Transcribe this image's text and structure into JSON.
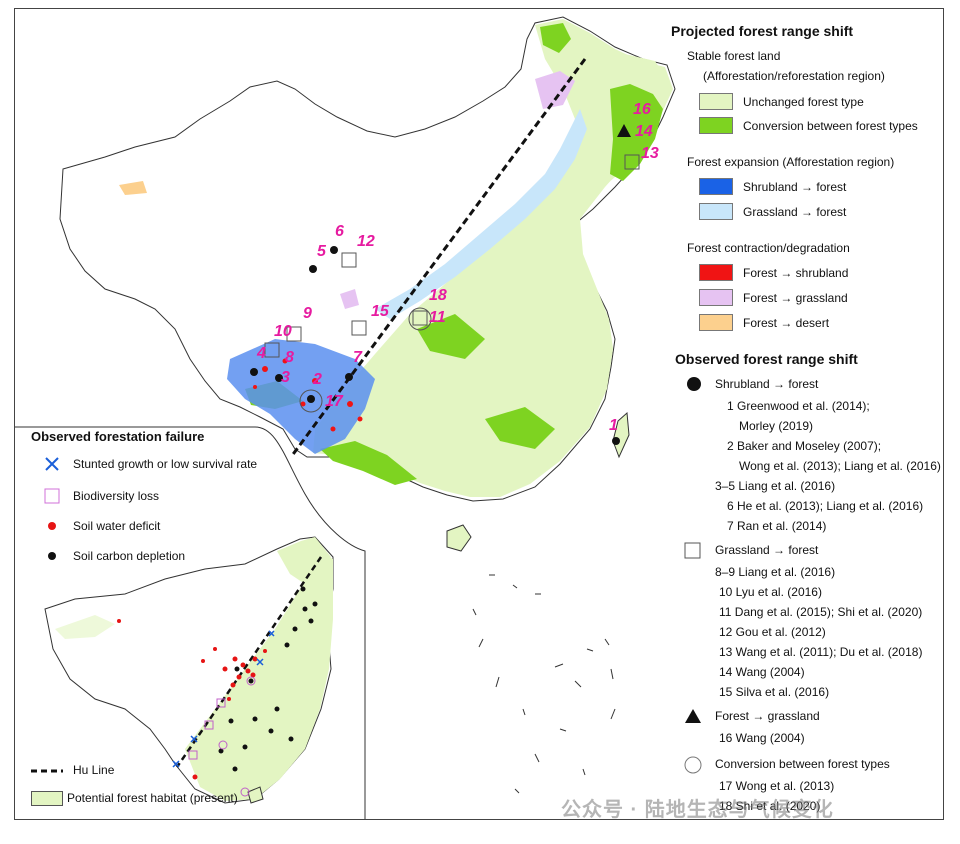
{
  "legend": {
    "projected_title": "Projected forest range shift",
    "stable_heading": "Stable forest land",
    "stable_sub": "(Afforestation/reforestation region)",
    "unchanged": "Unchanged forest type",
    "conversion": "Conversion between forest types",
    "expansion_heading": "Forest expansion (Afforestation region)",
    "shrub_forest": "Shrubland → forest",
    "grass_forest": "Grassland → forest",
    "contraction_heading": "Forest contraction/degradation",
    "forest_shrub": "Forest → shrubland",
    "forest_grass": "Forest → grassland",
    "forest_desert": "Forest → desert",
    "observed_title": "Observed forest range shift",
    "obs_shrub": "Shrubland → forest",
    "ref1a": "1  Greenwood et al. (2014);",
    "ref1b": "Morley (2019)",
    "ref2a": "2  Baker and Moseley (2007);",
    "ref2b": "Wong et al. (2013); Liang et al. (2016)",
    "ref3": "3–5 Liang et al. (2016)",
    "ref6": "6  He et al. (2013); Liang et al. (2016)",
    "ref7": "7  Ran et al. (2014)",
    "obs_grass": "Grassland → forest",
    "ref8": "8–9 Liang et al. (2016)",
    "ref10": "10  Lyu et al. (2016)",
    "ref11": "11  Dang et al. (2015); Shi et al. (2020)",
    "ref12": "12  Gou et al. (2012)",
    "ref13": "13  Wang et al. (2011); Du et al. (2018)",
    "ref14": "14  Wang (2004)",
    "ref15": "15  Silva et al. (2016)",
    "obs_fg": "Forest → grassland",
    "ref16": "16  Wang (2004)",
    "obs_conv": "Conversion between forest types",
    "ref17": "17  Wong et al. (2013)",
    "ref18": "18  Shi et al. (2020)"
  },
  "inset": {
    "title": "Observed forestation failure",
    "stunted": "Stunted growth or low survival rate",
    "biodiversity": "Biodiversity loss",
    "soil_water": "Soil water deficit",
    "soil_carbon": "Soil carbon depletion",
    "hu_line": "Hu Line",
    "habitat": "Potential forest habitat (present)"
  },
  "map_numbers": [
    "1",
    "2",
    "3",
    "4",
    "5",
    "6",
    "7",
    "8",
    "9",
    "10",
    "11",
    "12",
    "13",
    "14",
    "15",
    "16",
    "17",
    "18"
  ],
  "watermark": "公众号 · 陆地生态与气候变化",
  "colors": {
    "unchanged": "#e3f5c2",
    "conversion": "#7ed321",
    "shrub_forest": "#1a62e6",
    "grass_forest": "#c8e6fa",
    "forest_shrub": "#f01414",
    "forest_grass": "#e6c3f2",
    "forest_desert": "#fcd08e",
    "numbers": "#e61ba0"
  }
}
